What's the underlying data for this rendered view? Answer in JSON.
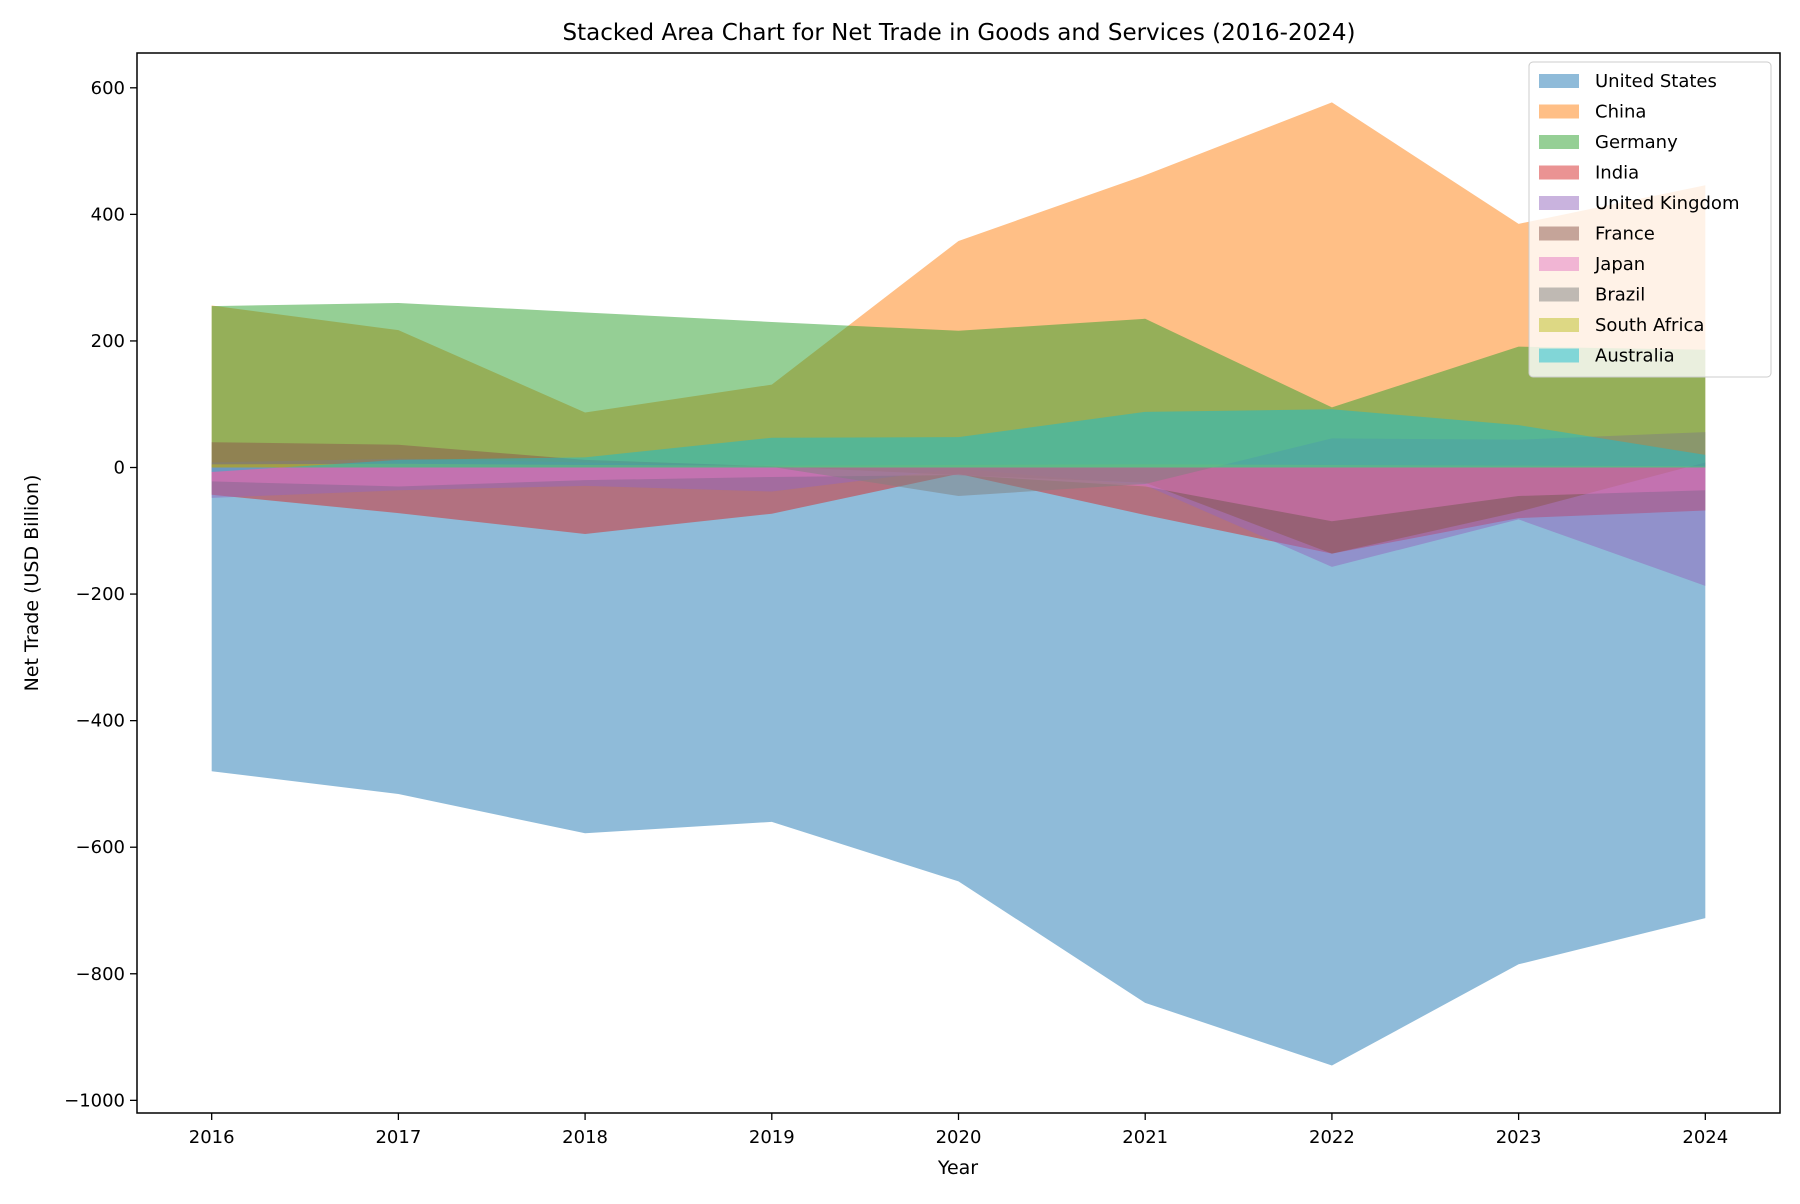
{
  "chart_data": {
    "type": "area",
    "title": "Stacked Area Chart for Net Trade in Goods and Services (2016-2024)",
    "xlabel": "Year",
    "ylabel": "Net Trade (USD Billion)",
    "x": [
      2016,
      2017,
      2018,
      2019,
      2020,
      2021,
      2022,
      2023,
      2024
    ],
    "ylim": [
      -1020,
      655
    ],
    "yticks": [
      -1000,
      -800,
      -600,
      -400,
      -200,
      0,
      200,
      400,
      600
    ],
    "ytick_labels": [
      "−1000",
      "−800",
      "−600",
      "−400",
      "−200",
      "0",
      "200",
      "400",
      "600"
    ],
    "xtick_labels": [
      "2016",
      "2017",
      "2018",
      "2019",
      "2020",
      "2021",
      "2022",
      "2023",
      "2024"
    ],
    "grid": false,
    "legend_position": "top-right",
    "series": [
      {
        "name": "United States",
        "color": "#1f77b4",
        "values": [
          -480,
          -516,
          -578,
          -560,
          -654,
          -846,
          -945,
          -785,
          -712
        ]
      },
      {
        "name": "China",
        "color": "#ff7f0e",
        "values": [
          256,
          217,
          87,
          131,
          358,
          462,
          577,
          385,
          446
        ]
      },
      {
        "name": "Germany",
        "color": "#2ca02c",
        "values": [
          255,
          260,
          245,
          230,
          216,
          235,
          95,
          191,
          186
        ]
      },
      {
        "name": "India",
        "color": "#d62728",
        "values": [
          -43,
          -72,
          -105,
          -73,
          -10,
          -75,
          -136,
          -80,
          -68
        ]
      },
      {
        "name": "United Kingdom",
        "color": "#9467bd",
        "values": [
          -48,
          -36,
          -29,
          -38,
          -2,
          -28,
          -157,
          -82,
          -187
        ]
      },
      {
        "name": "France",
        "color": "#8c564b",
        "values": [
          40,
          36,
          12,
          2,
          -12,
          -24,
          -136,
          -70,
          8
        ]
      },
      {
        "name": "Japan",
        "color": "#e377c2",
        "values": [
          -22,
          -30,
          -20,
          -15,
          -12,
          -30,
          -85,
          -45,
          -36
        ]
      },
      {
        "name": "Brazil",
        "color": "#7f7f7f",
        "values": [
          8,
          14,
          8,
          1,
          -45,
          -26,
          46,
          44,
          56
        ]
      },
      {
        "name": "South Africa",
        "color": "#bcbd22",
        "values": [
          5,
          6,
          4,
          3,
          4,
          5,
          4,
          3,
          2
        ]
      },
      {
        "name": "Australia",
        "color": "#17becf",
        "values": [
          -7,
          12,
          16,
          47,
          48,
          88,
          92,
          67,
          20
        ]
      }
    ]
  }
}
